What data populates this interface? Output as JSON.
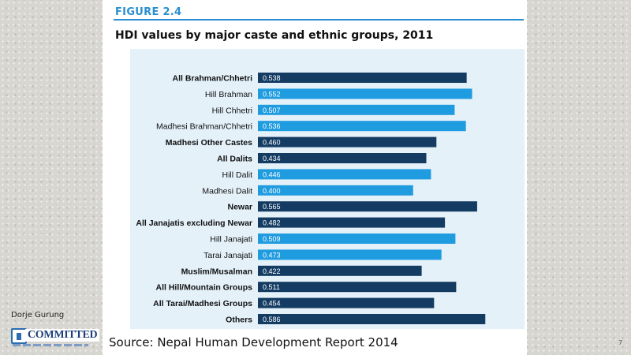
{
  "figure_label": "FIGURE 2.4",
  "chart_data": {
    "type": "bar",
    "orientation": "horizontal",
    "title": "HDI values by major caste and ethnic groups, 2011",
    "xlabel": "",
    "ylabel": "",
    "xlim": [
      0,
      0.62
    ],
    "grid": false,
    "legend": "none",
    "categories": [
      "All Brahman/Chhetri",
      "Hill Brahman",
      "Hill Chhetri",
      "Madhesi Brahman/Chhetri",
      "Madhesi Other Castes",
      "All Dalits",
      "Hill Dalit",
      "Madhesi Dalit",
      "Newar",
      "All Janajatis excluding Newar",
      "Hill Janajati",
      "Tarai Janajati",
      "Muslim/Musalman",
      "All Hill/Mountain Groups",
      "All Tarai/Madhesi Groups",
      "Others"
    ],
    "values": [
      0.538,
      0.552,
      0.507,
      0.536,
      0.46,
      0.434,
      0.446,
      0.4,
      0.565,
      0.482,
      0.509,
      0.473,
      0.422,
      0.511,
      0.454,
      0.586
    ],
    "value_labels": [
      "0.538",
      "0.552",
      "0.507",
      "0.536",
      "0.460",
      "0.434",
      "0.446",
      "0.400",
      "0.565",
      "0.482",
      "0.509",
      "0.473",
      "0.422",
      "0.511",
      "0.454",
      "0.586"
    ],
    "bold": [
      true,
      false,
      false,
      false,
      true,
      true,
      false,
      false,
      true,
      true,
      false,
      false,
      true,
      true,
      true,
      true
    ],
    "colors": {
      "aggregate": "#143c63",
      "subgroup": "#1f9be0"
    }
  },
  "source": "Source: Nepal Human Development Report 2014",
  "author": "Dorje Gurung",
  "logo_text": "COMMITTED",
  "page_number": "7"
}
